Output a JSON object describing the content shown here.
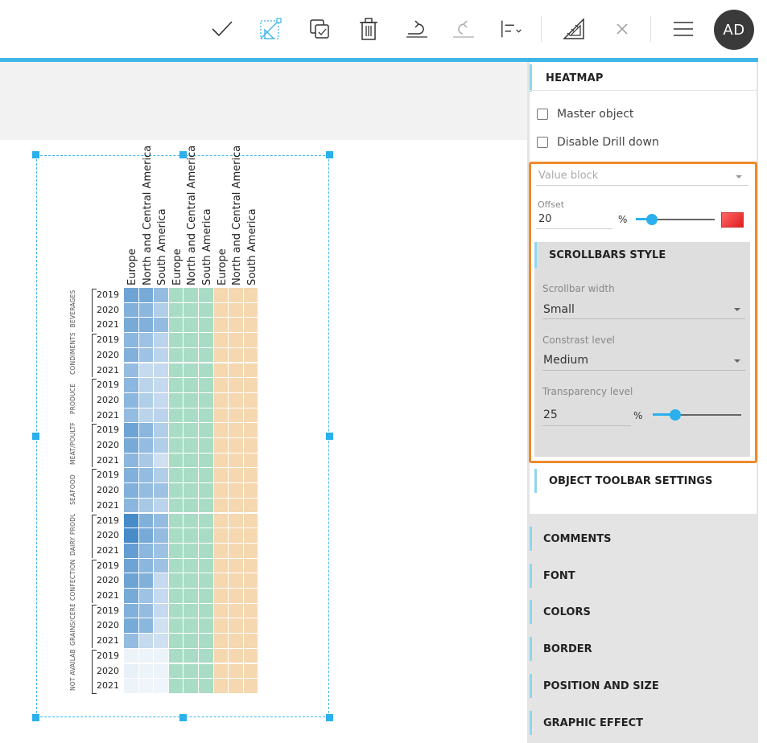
{
  "toolbar": {
    "icons": [
      "check-icon",
      "pivot-icon",
      "duplicate-icon",
      "trash-icon",
      "undo-icon",
      "redo-icon",
      "align-icon",
      "ruler-icon",
      "close-icon",
      "menu-icon"
    ],
    "avatar_initials": "AD"
  },
  "panel": {
    "heatmap_title": "HEATMAP",
    "master_object_label": "Master object",
    "disable_drill_label": "Disable Drill down",
    "value_block_label": "Value block",
    "offset_label": "Offset",
    "offset_value": "20",
    "offset_unit": "%",
    "offset_slider_fraction": 0.2,
    "scrollbars_title": "SCROLLBARS STYLE",
    "scrollbar_width_label": "Scrollbar width",
    "scrollbar_width_value": "Small",
    "contrast_label": "Constrast level",
    "contrast_value": "Medium",
    "transparency_label": "Transparency level",
    "transparency_value": "25",
    "transparency_unit": "%",
    "transparency_slider_fraction": 0.25,
    "object_toolbar_title": "OBJECT TOOLBAR SETTINGS",
    "sections": [
      "COMMENTS",
      "FONT",
      "COLORS",
      "BORDER",
      "POSITION AND SIZE",
      "GRAPHIC EFFECT"
    ]
  },
  "heatmap": {
    "column_labels": [
      "Europe",
      "North and Central America",
      "South America",
      "Europe",
      "North and Central America",
      "South America",
      "Europe",
      "North and Central America",
      "South America"
    ],
    "categories": [
      "BEVERAGES",
      "CONDIMENTS",
      "PRODUCE",
      "MEAT/POULTRY",
      "SEAFOOD",
      "DAIRY PRODUCTS",
      "CONFECTIONS",
      "GRAINS/CEREALS",
      "NOT AVAILABLE"
    ],
    "years": [
      "2019",
      "2020",
      "2021"
    ],
    "group_colors": [
      "#3d85c6",
      "#a8dcc4",
      "#f5d7b0"
    ],
    "blue_intensity": [
      [
        0.75,
        0.7,
        0.55
      ],
      [
        0.65,
        0.6,
        0.4
      ],
      [
        0.7,
        0.65,
        0.55
      ],
      [
        0.6,
        0.5,
        0.35
      ],
      [
        0.65,
        0.5,
        0.35
      ],
      [
        0.55,
        0.3,
        0.3
      ],
      [
        0.6,
        0.35,
        0.3
      ],
      [
        0.6,
        0.4,
        0.3
      ],
      [
        0.55,
        0.35,
        0.35
      ],
      [
        0.75,
        0.6,
        0.4
      ],
      [
        0.7,
        0.55,
        0.4
      ],
      [
        0.6,
        0.45,
        0.25
      ],
      [
        0.65,
        0.55,
        0.4
      ],
      [
        0.65,
        0.55,
        0.5
      ],
      [
        0.6,
        0.45,
        0.35
      ],
      [
        0.95,
        0.65,
        0.55
      ],
      [
        0.95,
        0.7,
        0.55
      ],
      [
        0.8,
        0.6,
        0.5
      ],
      [
        0.75,
        0.6,
        0.5
      ],
      [
        0.75,
        0.65,
        0.3
      ],
      [
        0.7,
        0.5,
        0.3
      ],
      [
        0.65,
        0.55,
        0.3
      ],
      [
        0.7,
        0.6,
        0.25
      ],
      [
        0.55,
        0.3,
        0.25
      ],
      [
        0.1,
        0.1,
        0.1
      ],
      [
        0.12,
        0.1,
        0.1
      ],
      [
        0.1,
        0.08,
        0.08
      ]
    ]
  }
}
